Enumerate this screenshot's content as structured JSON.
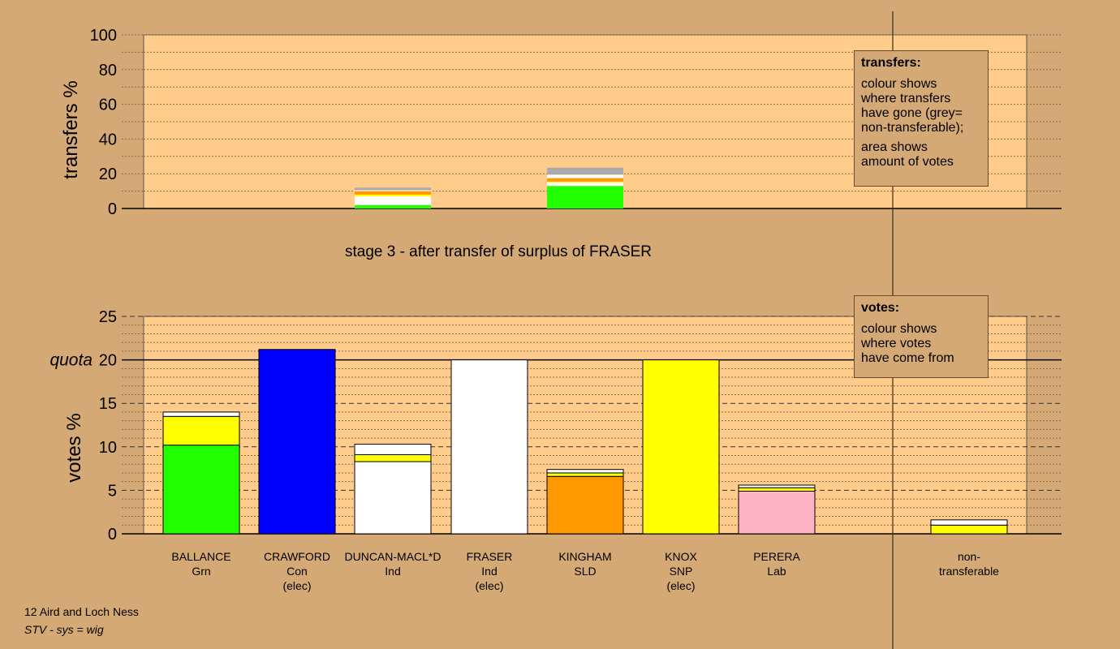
{
  "chart_data": [
    {
      "type": "bar",
      "ylabel": "transfers %",
      "ylim": [
        0,
        100
      ],
      "yticks": [
        "0",
        "20",
        "40",
        "60",
        "80",
        "100"
      ],
      "categories": [
        "BALLANCE",
        "CRAWFORD",
        "DUNCAN-MACL*D",
        "FRASER",
        "KINGHAM",
        "KNOX",
        "PERERA"
      ],
      "segments": [
        [],
        [],
        [
          {
            "color": "#22FF00",
            "value": 2
          },
          {
            "color": "#FFFFFF",
            "value": 5
          },
          {
            "color": "#FFFF00",
            "value": 1
          },
          {
            "color": "#FF9900",
            "value": 2
          },
          {
            "color": "#FFFFFF",
            "value": 0.5
          },
          {
            "color": "#AAAAAA",
            "value": 1.5
          }
        ],
        [],
        [
          {
            "color": "#22FF00",
            "value": 13
          },
          {
            "color": "#FFFFFF",
            "value": 2
          },
          {
            "color": "#FFFF00",
            "value": 0.5
          },
          {
            "color": "#FF9900",
            "value": 2
          },
          {
            "color": "#FFFFFF",
            "value": 2
          },
          {
            "color": "#AAAAAA",
            "value": 4
          }
        ],
        [],
        []
      ]
    },
    {
      "type": "bar",
      "ylabel": "votes %",
      "ylim": [
        0,
        25
      ],
      "yticks": [
        "0",
        "5",
        "10",
        "15",
        "20",
        "25"
      ],
      "quota_label": "quota",
      "quota": 20,
      "categories": [
        "BALLANCE",
        "CRAWFORD",
        "DUNCAN-MACL*D",
        "FRASER",
        "KINGHAM",
        "KNOX",
        "PERERA"
      ],
      "category_labels": [
        [
          "BALLANCE",
          "Grn"
        ],
        [
          "CRAWFORD",
          "Con",
          "(elec)"
        ],
        [
          "DUNCAN-MACL*D",
          "Ind"
        ],
        [
          "FRASER",
          "Ind",
          "(elec)"
        ],
        [
          "KINGHAM",
          "SLD"
        ],
        [
          "KNOX",
          "SNP",
          "(elec)"
        ],
        [
          "PERERA",
          "Lab"
        ]
      ],
      "segments": [
        [
          {
            "color": "#22FF00",
            "value": 10.2
          },
          {
            "color": "#FFFF00",
            "value": 3.3
          },
          {
            "color": "#FFFFFF",
            "value": 0.5
          }
        ],
        [
          {
            "color": "#0000FF",
            "value": 21.2
          }
        ],
        [
          {
            "color": "#FFFFFF",
            "value": 8.3
          },
          {
            "color": "#FFFF00",
            "value": 0.8
          },
          {
            "color": "#FFFFFF",
            "value": 1.2
          }
        ],
        [
          {
            "color": "#FFFFFF",
            "value": 20
          }
        ],
        [
          {
            "color": "#FF9900",
            "value": 6.6
          },
          {
            "color": "#FFFF00",
            "value": 0.4
          },
          {
            "color": "#FFFFFF",
            "value": 0.4
          }
        ],
        [
          {
            "color": "#FFFF00",
            "value": 20
          }
        ],
        [
          {
            "color": "#FFB3C6",
            "value": 4.9
          },
          {
            "color": "#FFFF00",
            "value": 0.4
          },
          {
            "color": "#FFFFFF",
            "value": 0.3
          }
        ]
      ],
      "nontransferable_label": [
        "non-",
        "transferable"
      ],
      "nontransferable_segments": [
        {
          "color": "#FFFF00",
          "value": 1.0
        },
        {
          "color": "#FFFFFF",
          "value": 0.6
        }
      ]
    }
  ],
  "stage_title": "stage 3 - after transfer of surplus of FRASER",
  "legend_transfers": {
    "title": "transfers:",
    "lines1": [
      "colour shows",
      "where transfers",
      "have gone (grey=",
      "non-transferable);"
    ],
    "lines2": [
      "area shows",
      "amount of votes"
    ]
  },
  "legend_votes": {
    "title": "votes:",
    "lines1": [
      "colour shows",
      "where votes",
      "have come from"
    ]
  },
  "footer": {
    "line1": "12 Aird and Loch Ness",
    "line2": "STV - sys = wig"
  },
  "colors": {
    "background": "#D4A975",
    "plot_area": "#FFCC8C"
  }
}
